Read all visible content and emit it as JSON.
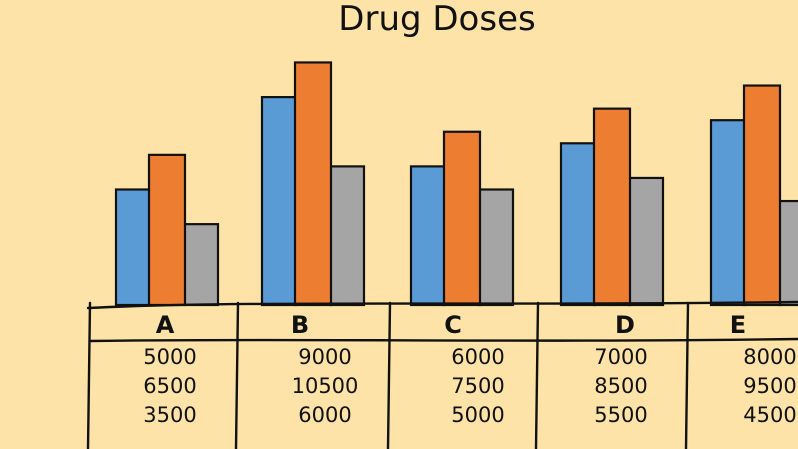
{
  "chart_data": {
    "type": "bar",
    "title": "Drug Doses",
    "categories": [
      "A",
      "B",
      "C",
      "D",
      "E"
    ],
    "series": [
      {
        "values": [
          5000,
          9000,
          6000,
          7000,
          8000
        ],
        "color": "#5b9bd5"
      },
      {
        "values": [
          6500,
          10500,
          7500,
          8500,
          9500
        ],
        "color": "#ed7d31"
      },
      {
        "values": [
          3500,
          6000,
          5000,
          5500,
          4500
        ],
        "color": "#a5a5a5"
      }
    ],
    "table": {
      "rows": [
        [
          "5000",
          "9000",
          "6000",
          "7000",
          "8000"
        ],
        [
          "6500",
          "10500",
          "7500",
          "8500",
          "9500"
        ],
        [
          "3500",
          "6000",
          "5000",
          "5500",
          "4500"
        ]
      ]
    },
    "ylim": [
      0,
      11000
    ],
    "grid": false,
    "legend": "none"
  }
}
